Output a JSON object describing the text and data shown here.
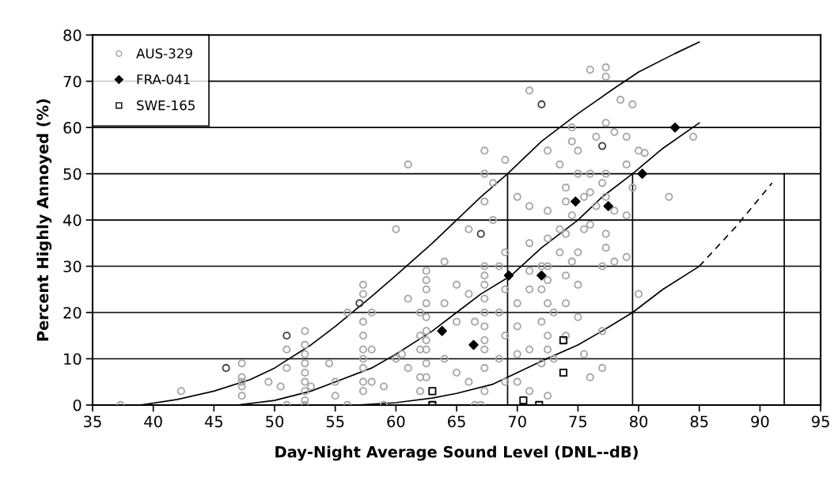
{
  "chart_data": {
    "type": "scatter",
    "xlabel": "Day-Night Average Sound Level (DNL--dB)",
    "ylabel": "Percent Highly Annoyed (%)",
    "xlim": [
      35,
      95
    ],
    "ylim": [
      0,
      80
    ],
    "xticks": [
      35,
      40,
      45,
      50,
      55,
      60,
      65,
      70,
      75,
      80,
      85,
      90,
      95
    ],
    "yticks": [
      0,
      10,
      20,
      30,
      40,
      50,
      60,
      70,
      80
    ],
    "grid": "y",
    "legend": "top left",
    "series": [
      {
        "name": "AUS-329",
        "color": "#a6a6a6",
        "marker": "circle",
        "x": [
          37.3,
          42.3,
          47.3,
          47.3,
          47.3,
          47.3,
          47.3,
          49.5,
          50.5,
          51,
          51,
          51,
          52.5,
          52.5,
          52.5,
          52.5,
          52.5,
          52.5,
          52.5,
          52.5,
          52.5,
          53,
          54.5,
          55,
          55,
          56,
          56,
          57.3,
          57.3,
          57.3,
          57.3,
          57.3,
          57.3,
          57.3,
          57.3,
          57.3,
          58,
          58,
          58,
          59,
          59,
          60,
          60,
          60.5,
          61,
          61,
          61,
          62,
          62,
          62,
          62,
          62,
          62.5,
          62.5,
          62.5,
          62.5,
          62.5,
          62.5,
          62.5,
          62.5,
          62.5,
          62.5,
          63,
          64,
          64,
          64,
          65,
          65,
          65,
          66,
          66,
          66,
          66.5,
          66.5,
          67.3,
          67.3,
          67.3,
          67.3,
          67.3,
          67.3,
          67.3,
          67.3,
          67.3,
          67.3,
          67.3,
          67.3,
          67.3,
          67,
          68,
          68,
          68.5,
          68.5,
          68.5,
          69,
          69,
          69,
          69,
          69,
          70,
          70,
          70,
          70,
          70,
          71,
          71,
          71,
          71,
          71,
          71,
          71,
          72,
          72,
          72,
          72,
          72.5,
          72.5,
          72.5,
          72.5,
          72.5,
          72.5,
          72.5,
          72.5,
          72.5,
          73,
          73,
          73.5,
          73.5,
          73.5,
          74,
          74,
          74,
          74,
          74,
          74,
          74.5,
          74.5,
          74.5,
          74.5,
          75,
          75,
          75,
          75,
          75,
          75.5,
          75.5,
          75.5,
          76,
          76,
          76,
          76,
          76,
          76.5,
          76.5,
          77,
          77,
          77,
          77,
          77.3,
          77.3,
          77.3,
          77.3,
          77.3,
          77.3,
          77.3,
          78,
          78,
          78,
          78.5,
          79,
          79,
          79,
          79,
          79.5,
          79.5,
          80,
          80,
          80.5,
          82.5,
          84.5
        ],
        "values": [
          0,
          3,
          2,
          4,
          5,
          6,
          9,
          5,
          4,
          12,
          8,
          0,
          16,
          13,
          11,
          9,
          7,
          5,
          3,
          1,
          0,
          4,
          9,
          5,
          2,
          0,
          20,
          26,
          24,
          18,
          15,
          12,
          10,
          8,
          5,
          3,
          20,
          12,
          5,
          0,
          4,
          38,
          10,
          11,
          52,
          23,
          8,
          20,
          15,
          12,
          6,
          3,
          29,
          27,
          25,
          22,
          19,
          16,
          14,
          12,
          9,
          6,
          0,
          10,
          22,
          31,
          7,
          18,
          26,
          24,
          38,
          5,
          0,
          18,
          55,
          50,
          44,
          30,
          28,
          26,
          23,
          20,
          17,
          14,
          12,
          8,
          3,
          0,
          40,
          48,
          30,
          20,
          10,
          53,
          33,
          25,
          15,
          5,
          45,
          22,
          17,
          11,
          5,
          68,
          43,
          35,
          29,
          25,
          12,
          3,
          30,
          25,
          18,
          9,
          55,
          42,
          36,
          30,
          27,
          22,
          15,
          12,
          2,
          10,
          20,
          52,
          38,
          33,
          47,
          44,
          37,
          28,
          22,
          15,
          60,
          57,
          41,
          31,
          55,
          50,
          33,
          26,
          19,
          45,
          38,
          11,
          72.5,
          50,
          46,
          39,
          6,
          58,
          43,
          48,
          30,
          16,
          8,
          73,
          71,
          61,
          50,
          45,
          37,
          34,
          59,
          42,
          31,
          66,
          52,
          41,
          32,
          58,
          65,
          47,
          24,
          55,
          54.5,
          45,
          58
        ]
      },
      {
        "color": "#404040",
        "marker": "circle",
        "x": [
          46,
          51,
          57,
          67,
          72,
          77
        ],
        "values": [
          8,
          15,
          22,
          37,
          65,
          56
        ]
      },
      {
        "name": "FRA-041",
        "color": "#000000",
        "marker": "diamond",
        "x": [
          63.8,
          66.4,
          69.3,
          72,
          74.8,
          77.5,
          80.3,
          83
        ],
        "values": [
          16,
          13,
          28,
          28,
          44,
          43,
          50,
          60
        ]
      },
      {
        "name": "SWE-165",
        "color": "#000000",
        "marker": "square",
        "x": [
          63,
          63,
          70.5,
          71.8,
          73.8,
          73.8
        ],
        "values": [
          3,
          0,
          1,
          0,
          14,
          7
        ]
      },
      {
        "type": "line",
        "color": "#000000",
        "line_style": "solid",
        "x": [
          39,
          42,
          45,
          48,
          50,
          53,
          55,
          58,
          60,
          63,
          65,
          67,
          69.2,
          72,
          75,
          78,
          80,
          83,
          85
        ],
        "values": [
          0,
          1.2,
          3,
          5.5,
          8,
          13,
          17,
          23.5,
          28,
          35,
          40,
          45,
          50,
          57,
          63,
          68.5,
          72,
          76,
          78.5
        ]
      },
      {
        "type": "line",
        "color": "#000000",
        "line_style": "solid",
        "x": [
          47,
          50,
          53,
          55,
          58,
          60,
          63,
          65,
          67,
          69.5,
          72,
          75,
          77,
          79.5,
          82,
          85
        ],
        "values": [
          0,
          1,
          3,
          5,
          8,
          11,
          16,
          20,
          24,
          28,
          34,
          40,
          45,
          50,
          55.5,
          61
        ]
      },
      {
        "type": "line",
        "color": "#000000",
        "line_style": "solid",
        "x": [
          57,
          60,
          63,
          65,
          68,
          70,
          72,
          75,
          77,
          79.5,
          82,
          85
        ],
        "values": [
          0,
          0.5,
          1.5,
          2.5,
          4.5,
          7,
          9.5,
          13,
          16,
          20,
          25,
          30
        ]
      },
      {
        "type": "line",
        "color": "#000000",
        "line_style": "dashed",
        "x": [
          85,
          88,
          91
        ],
        "values": [
          30,
          38.5,
          48
        ]
      },
      {
        "type": "line",
        "color": "#000000",
        "line_style": "solid",
        "x": [
          69.2,
          69.2
        ],
        "values": [
          0,
          50
        ]
      },
      {
        "type": "line",
        "color": "#000000",
        "line_style": "solid",
        "x": [
          79.5,
          79.5
        ],
        "values": [
          0,
          50
        ]
      },
      {
        "type": "line",
        "color": "#000000",
        "line_style": "solid",
        "x": [
          92,
          92
        ],
        "values": [
          0,
          50
        ]
      }
    ]
  }
}
